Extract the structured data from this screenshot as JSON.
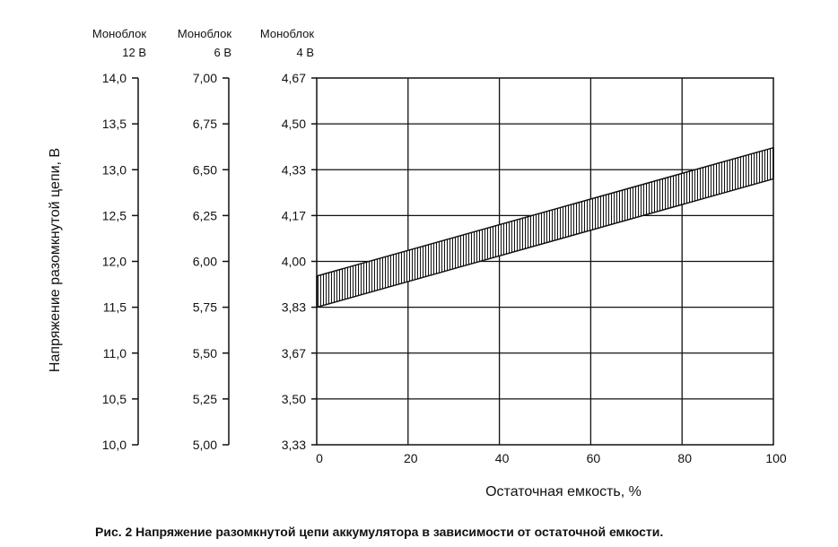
{
  "chart_data": {
    "type": "area",
    "caption": "Рис. 2  Напряжение разомкнутой цепи аккумулятора в зависимости от остаточной емкости.",
    "xlabel": "Остаточная емкость, %",
    "ylabel": "Напряжение разомкнутой цепи, В",
    "xlim": [
      0,
      100
    ],
    "x_ticks": [
      "0",
      "20",
      "40",
      "60",
      "80",
      "100"
    ],
    "grid": true,
    "y_axes": [
      {
        "header_line1": "Моноблок",
        "header_line2": "12 В",
        "ticks": [
          "14,0",
          "13,5",
          "13,0",
          "12,5",
          "12,0",
          "11,5",
          "11,0",
          "10,5",
          "10,0"
        ],
        "ylim": [
          10.0,
          14.0
        ]
      },
      {
        "header_line1": "Моноблок",
        "header_line2": "6 В",
        "ticks": [
          "7,00",
          "6,75",
          "6,50",
          "6,25",
          "6,00",
          "5,75",
          "5,50",
          "5,25",
          "5,00"
        ],
        "ylim": [
          5.0,
          7.0
        ]
      },
      {
        "header_line1": "Моноблок",
        "header_line2": "4 В",
        "ticks": [
          "4,67",
          "4,50",
          "4,33",
          "4,17",
          "4,00",
          "3,83",
          "3,67",
          "3,50",
          "3,33"
        ],
        "ylim": [
          3.33,
          4.67
        ]
      }
    ],
    "band": {
      "x": [
        0,
        100
      ],
      "upper": [
        11.84,
        13.24
      ],
      "lower": [
        11.5,
        12.9
      ]
    }
  }
}
